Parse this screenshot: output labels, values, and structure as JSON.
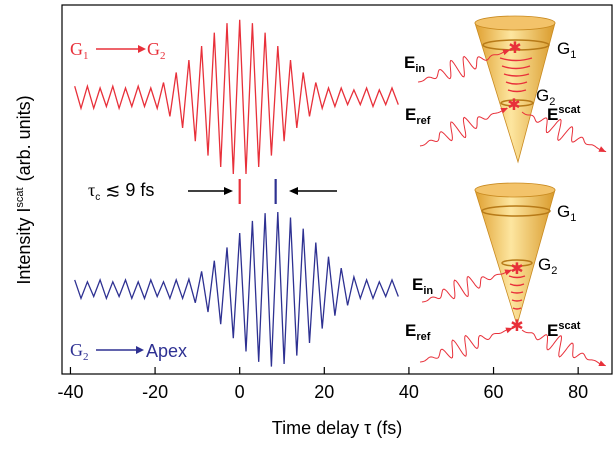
{
  "chart_data": {
    "type": "line",
    "x_label": "Time delay τ  (fs)",
    "y_label": {
      "text": "Intensity I",
      "sup": "scat",
      "units": "(arb. units)"
    },
    "xlim": [
      -42,
      88
    ],
    "ylim": [
      0,
      100
    ],
    "xticks": [
      -40,
      -20,
      0,
      20,
      40,
      60,
      80
    ],
    "x": [
      -39,
      -37.5,
      -36,
      -34.5,
      -33,
      -31.5,
      -30,
      -28.5,
      -27,
      -25.5,
      -24,
      -22.5,
      -21,
      -19.5,
      -18,
      -16.5,
      -15,
      -13.5,
      -12,
      -10.5,
      -9,
      -7.5,
      -6,
      -4.5,
      -3,
      -1.5,
      0,
      1.5,
      3,
      4.5,
      6,
      7.5,
      9,
      10.5,
      12,
      13.5,
      15,
      16.5,
      18,
      19.5,
      21,
      22.5,
      24,
      25.5,
      27,
      28.5,
      30,
      31.5,
      33,
      34.5,
      36,
      37.5
    ],
    "series": [
      {
        "color": "#e8303a",
        "values": [
          78,
          72,
          78,
          72,
          77.5,
          72.5,
          78,
          72,
          77.5,
          72.5,
          78,
          72.5,
          77.5,
          72,
          79,
          69.8,
          81.7,
          66.7,
          85.1,
          63.1,
          88.9,
          59.2,
          92.5,
          56.1,
          95.1,
          54.2,
          96,
          54.2,
          95.1,
          56.1,
          92.5,
          59.2,
          88.9,
          63.1,
          85.1,
          66.7,
          81.7,
          69.8,
          79,
          72,
          77.5,
          72.5,
          77.5,
          73,
          77,
          73,
          77.5,
          72.5,
          77,
          73,
          77.5,
          73
        ]
      },
      {
        "color": "#2e3192",
        "values": [
          25.5,
          20.5,
          25,
          21,
          25.5,
          20.5,
          25,
          21,
          25.5,
          20.5,
          25,
          20.5,
          25.5,
          21,
          25,
          20.5,
          25.5,
          20.5,
          25.7,
          19.3,
          27.8,
          16.8,
          30.7,
          13.5,
          34.3,
          9.7,
          38.2,
          6.1,
          41.5,
          3.3,
          43.6,
          2,
          43.9,
          2.7,
          42.4,
          5,
          39.4,
          8.4,
          35.6,
          12.3,
          31.8,
          15.8,
          28.7,
          18.6,
          26.3,
          20.5,
          25.5,
          20.5,
          25,
          21,
          25.5,
          21
        ]
      }
    ],
    "top_label": {
      "from": {
        "text": "G",
        "sub": "1"
      },
      "to": {
        "text": "G",
        "sub": "2"
      }
    },
    "bottom_label": {
      "from": {
        "text": "G",
        "sub": "2"
      },
      "to": "Apex"
    },
    "tau_annotation": {
      "text": "τ",
      "sub": "c",
      "rest": " ≲ 9 fs",
      "markers": [
        0,
        8.5
      ]
    },
    "diagrams": [
      {
        "e_in": {
          "text": "E",
          "sub": "in"
        },
        "e_ref": {
          "text": "E",
          "sub": "ref"
        },
        "e_scat": {
          "text": "E",
          "sup": "scat"
        },
        "g1": {
          "text": "G",
          "sub": "1"
        },
        "g2": {
          "text": "G",
          "sub": "2"
        }
      },
      {
        "e_in": {
          "text": "E",
          "sub": "in"
        },
        "e_ref": {
          "text": "E",
          "sub": "ref"
        },
        "e_scat": {
          "text": "E",
          "sup": "scat"
        },
        "g1": {
          "text": "G",
          "sub": "1"
        },
        "g2": {
          "text": "G",
          "sub": "2"
        }
      }
    ]
  }
}
